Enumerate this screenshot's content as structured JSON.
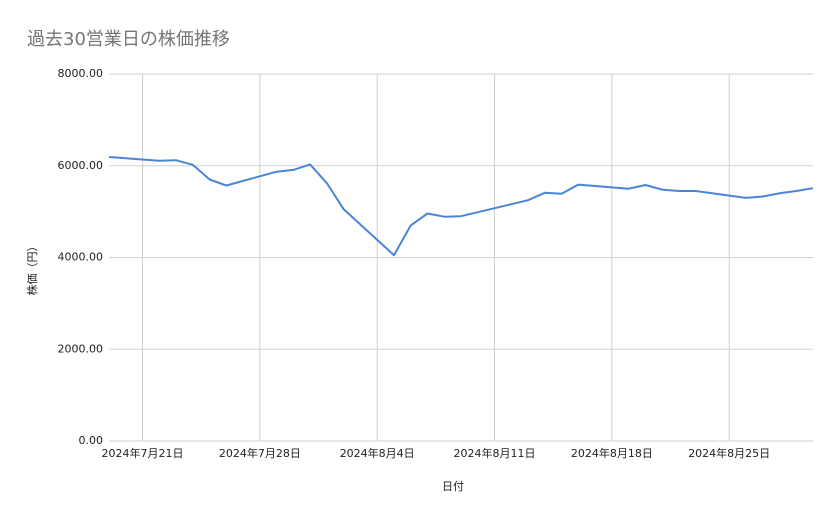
{
  "chart_data": {
    "type": "line",
    "title": "過去30営業日の株価推移",
    "x_label": "日付",
    "y_label": "株価（円）",
    "color": "#4a86d8",
    "grid": true,
    "x": [
      "2024-07-19",
      "2024-07-22",
      "2024-07-23",
      "2024-07-24",
      "2024-07-25",
      "2024-07-26",
      "2024-07-29",
      "2024-07-30",
      "2024-07-31",
      "2024-08-01",
      "2024-08-02",
      "2024-08-05",
      "2024-08-06",
      "2024-08-07",
      "2024-08-08",
      "2024-08-09",
      "2024-08-13",
      "2024-08-14",
      "2024-08-15",
      "2024-08-16",
      "2024-08-19",
      "2024-08-20",
      "2024-08-21",
      "2024-08-22",
      "2024-08-23",
      "2024-08-26",
      "2024-08-27",
      "2024-08-28",
      "2024-08-29",
      "2024-08-30"
    ],
    "values": [
      6190,
      6110,
      6120,
      6020,
      5700,
      5570,
      5870,
      5910,
      6030,
      5620,
      5050,
      4050,
      4700,
      4960,
      4890,
      4900,
      5250,
      5410,
      5390,
      5590,
      5500,
      5580,
      5480,
      5450,
      5450,
      5300,
      5330,
      5400,
      5450,
      5510
    ],
    "xlim": [
      "2024-07-19",
      "2024-08-30"
    ],
    "xticks": [
      {
        "value": "2024-07-21",
        "label": "2024年7月21日"
      },
      {
        "value": "2024-07-28",
        "label": "2024年7月28日"
      },
      {
        "value": "2024-08-04",
        "label": "2024年8月4日"
      },
      {
        "value": "2024-08-11",
        "label": "2024年8月11日"
      },
      {
        "value": "2024-08-18",
        "label": "2024年8月18日"
      },
      {
        "value": "2024-08-25",
        "label": "2024年8月25日"
      }
    ],
    "ylim": [
      0,
      8000
    ],
    "yticks": [
      {
        "value": 0,
        "label": "0.00"
      },
      {
        "value": 2000,
        "label": "2000.00"
      },
      {
        "value": 4000,
        "label": "4000.00"
      },
      {
        "value": 6000,
        "label": "6000.00"
      },
      {
        "value": 8000,
        "label": "8000.00"
      }
    ]
  }
}
